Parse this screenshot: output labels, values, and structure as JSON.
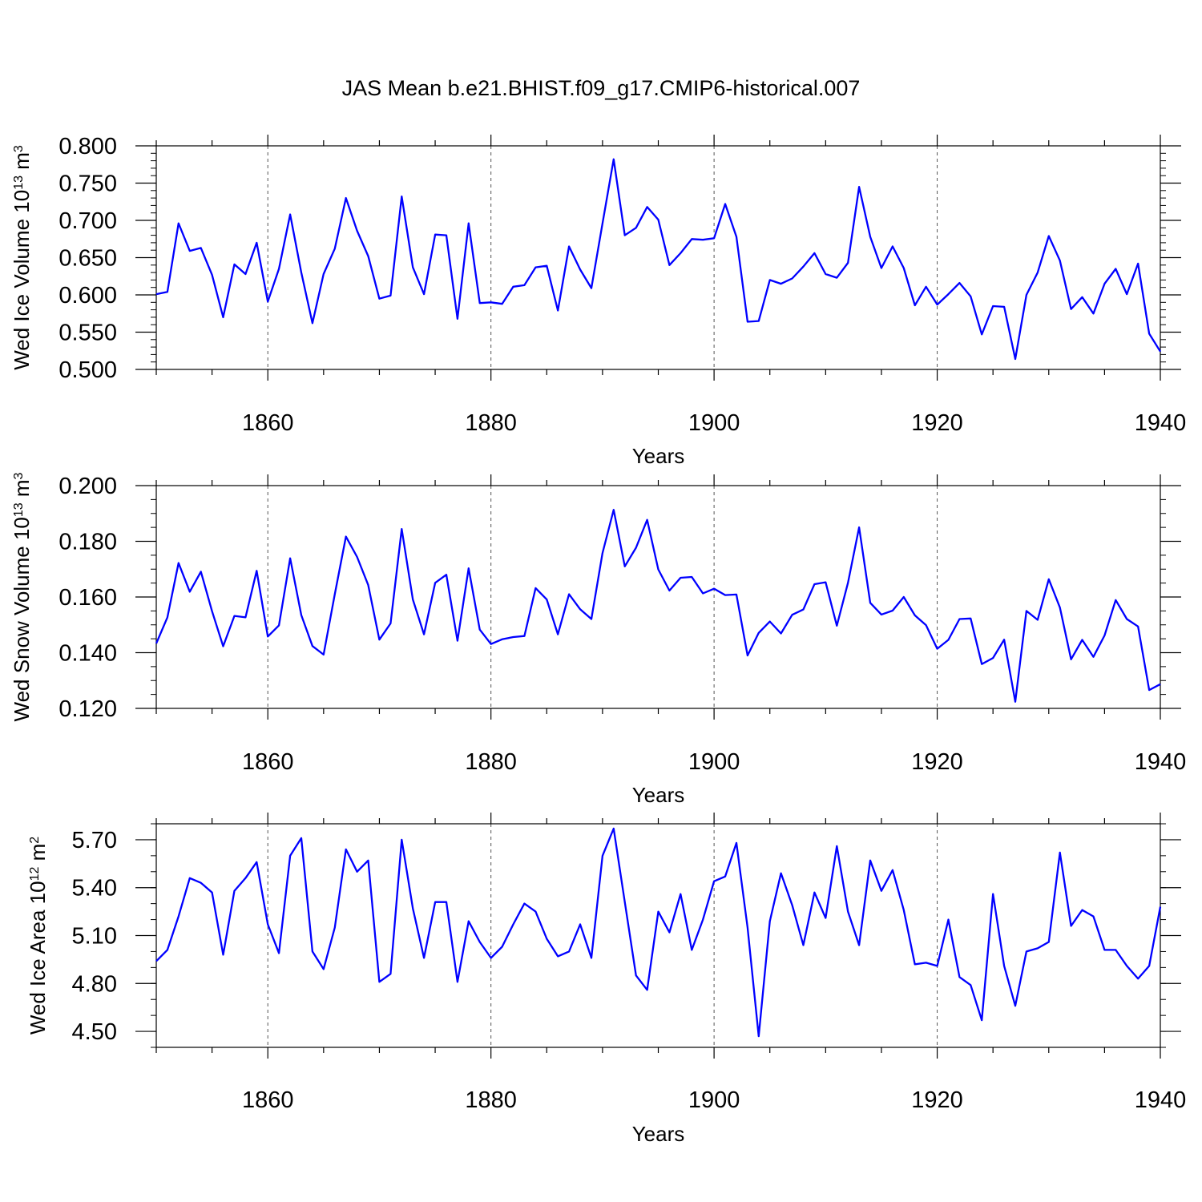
{
  "title": "JAS Mean b.e21.BHIST.f09_g17.CMIP6-historical.007",
  "colors": {
    "line": "#0000ff",
    "axis": "#000000",
    "grid": "#555555"
  },
  "chart_data": [
    {
      "type": "line",
      "ylabel_main": "Wed Ice Volume 10",
      "ylabel_exp": "13",
      "ylabel_unit": " m",
      "ylabel_unit_exp": "3",
      "xlabel": "Years",
      "xlim": [
        1850,
        1940
      ],
      "ylim": [
        0.5,
        0.8
      ],
      "yticks": [
        0.5,
        0.55,
        0.6,
        0.65,
        0.7,
        0.75,
        0.8
      ],
      "ytick_labels": [
        "0.500",
        "0.550",
        "0.600",
        "0.650",
        "0.700",
        "0.750",
        "0.800"
      ],
      "xticks": [
        1860,
        1880,
        1900,
        1920,
        1940
      ],
      "xtick_labels": [
        "1860",
        "1880",
        "1900",
        "1920",
        "1940"
      ],
      "grid_x": [
        1860,
        1880,
        1900,
        1920
      ],
      "x": [
        1850,
        1851,
        1852,
        1853,
        1854,
        1855,
        1856,
        1857,
        1858,
        1859,
        1860,
        1861,
        1862,
        1863,
        1864,
        1865,
        1866,
        1867,
        1868,
        1869,
        1870,
        1871,
        1872,
        1873,
        1874,
        1875,
        1876,
        1877,
        1878,
        1879,
        1880,
        1881,
        1882,
        1883,
        1884,
        1885,
        1886,
        1887,
        1888,
        1889,
        1890,
        1891,
        1892,
        1893,
        1894,
        1895,
        1896,
        1897,
        1898,
        1899,
        1900,
        1901,
        1902,
        1903,
        1904,
        1905,
        1906,
        1907,
        1908,
        1909,
        1910,
        1911,
        1912,
        1913,
        1914,
        1915,
        1916,
        1917,
        1918,
        1919,
        1920,
        1921,
        1922,
        1923,
        1924,
        1925,
        1926,
        1927,
        1928,
        1929,
        1930,
        1931,
        1932,
        1933,
        1934,
        1935,
        1936,
        1937,
        1938,
        1939,
        1940
      ],
      "values": [
        0.601,
        0.604,
        0.696,
        0.659,
        0.663,
        0.627,
        0.57,
        0.641,
        0.628,
        0.67,
        0.591,
        0.635,
        0.708,
        0.63,
        0.562,
        0.628,
        0.662,
        0.73,
        0.686,
        0.652,
        0.595,
        0.599,
        0.732,
        0.637,
        0.601,
        0.681,
        0.68,
        0.568,
        0.696,
        0.589,
        0.59,
        0.588,
        0.611,
        0.613,
        0.637,
        0.639,
        0.579,
        0.665,
        0.634,
        0.609,
        0.696,
        0.782,
        0.68,
        0.69,
        0.718,
        0.701,
        0.64,
        0.656,
        0.675,
        0.674,
        0.676,
        0.722,
        0.678,
        0.564,
        0.565,
        0.62,
        0.615,
        0.622,
        0.638,
        0.656,
        0.628,
        0.623,
        0.643,
        0.745,
        0.678,
        0.636,
        0.665,
        0.636,
        0.586,
        0.611,
        0.587,
        0.601,
        0.616,
        0.598,
        0.547,
        0.585,
        0.584,
        0.514,
        0.6,
        0.63,
        0.679,
        0.646,
        0.581,
        0.597,
        0.575,
        0.615,
        0.635,
        0.601,
        0.642,
        0.548,
        0.524
      ]
    },
    {
      "type": "line",
      "ylabel_main": "Wed Snow Volume 10",
      "ylabel_exp": "13",
      "ylabel_unit": " m",
      "ylabel_unit_exp": "3",
      "xlabel": "Years",
      "xlim": [
        1850,
        1940
      ],
      "ylim": [
        0.12,
        0.2
      ],
      "yticks": [
        0.12,
        0.14,
        0.16,
        0.18,
        0.2
      ],
      "ytick_labels": [
        "0.120",
        "0.140",
        "0.160",
        "0.180",
        "0.200"
      ],
      "xticks": [
        1860,
        1880,
        1900,
        1920,
        1940
      ],
      "xtick_labels": [
        "1860",
        "1880",
        "1900",
        "1920",
        "1940"
      ],
      "grid_x": [
        1860,
        1880,
        1900,
        1920
      ],
      "x": [
        1850,
        1851,
        1852,
        1853,
        1854,
        1855,
        1856,
        1857,
        1858,
        1859,
        1860,
        1861,
        1862,
        1863,
        1864,
        1865,
        1866,
        1867,
        1868,
        1869,
        1870,
        1871,
        1872,
        1873,
        1874,
        1875,
        1876,
        1877,
        1878,
        1879,
        1880,
        1881,
        1882,
        1883,
        1884,
        1885,
        1886,
        1887,
        1888,
        1889,
        1890,
        1891,
        1892,
        1893,
        1894,
        1895,
        1896,
        1897,
        1898,
        1899,
        1900,
        1901,
        1902,
        1903,
        1904,
        1905,
        1906,
        1907,
        1908,
        1909,
        1910,
        1911,
        1912,
        1913,
        1914,
        1915,
        1916,
        1917,
        1918,
        1919,
        1920,
        1921,
        1922,
        1923,
        1924,
        1925,
        1926,
        1927,
        1928,
        1929,
        1930,
        1931,
        1932,
        1933,
        1934,
        1935,
        1936,
        1937,
        1938,
        1939,
        1940
      ],
      "values": [
        0.1433,
        0.1527,
        0.1722,
        0.1619,
        0.1691,
        0.1549,
        0.1423,
        0.1532,
        0.1527,
        0.1694,
        0.1458,
        0.1498,
        0.1739,
        0.1535,
        0.1424,
        0.1393,
        0.161,
        0.1817,
        0.1744,
        0.1643,
        0.1447,
        0.1505,
        0.1844,
        0.1591,
        0.1466,
        0.1651,
        0.168,
        0.1443,
        0.1703,
        0.1483,
        0.1431,
        0.1448,
        0.1456,
        0.146,
        0.1632,
        0.1591,
        0.1466,
        0.161,
        0.1556,
        0.1521,
        0.1758,
        0.1913,
        0.171,
        0.1777,
        0.1877,
        0.1699,
        0.1623,
        0.1669,
        0.1672,
        0.1613,
        0.163,
        0.1607,
        0.1609,
        0.139,
        0.1471,
        0.1512,
        0.1469,
        0.1536,
        0.1555,
        0.1646,
        0.1653,
        0.1497,
        0.1651,
        0.185,
        0.1579,
        0.1537,
        0.1551,
        0.16,
        0.1534,
        0.1499,
        0.1414,
        0.1446,
        0.1521,
        0.1523,
        0.1359,
        0.1381,
        0.1447,
        0.1224,
        0.155,
        0.1518,
        0.1664,
        0.1562,
        0.1376,
        0.1446,
        0.1385,
        0.1462,
        0.1589,
        0.1521,
        0.1494,
        0.1266,
        0.1287
      ]
    },
    {
      "type": "line",
      "ylabel_main": "Wed Ice Area 10",
      "ylabel_exp": "12",
      "ylabel_unit": " m",
      "ylabel_unit_exp": "2",
      "xlabel": "Years",
      "xlim": [
        1850,
        1940
      ],
      "ylim": [
        4.4,
        5.8
      ],
      "yticks": [
        4.5,
        4.8,
        5.1,
        5.4,
        5.7
      ],
      "ytick_labels": [
        "4.50",
        "4.80",
        "5.10",
        "5.40",
        "5.70"
      ],
      "xticks": [
        1860,
        1880,
        1900,
        1920,
        1940
      ],
      "xtick_labels": [
        "1860",
        "1880",
        "1900",
        "1920",
        "1940"
      ],
      "grid_x": [
        1860,
        1880,
        1900,
        1920
      ],
      "x": [
        1850,
        1851,
        1852,
        1853,
        1854,
        1855,
        1856,
        1857,
        1858,
        1859,
        1860,
        1861,
        1862,
        1863,
        1864,
        1865,
        1866,
        1867,
        1868,
        1869,
        1870,
        1871,
        1872,
        1873,
        1874,
        1875,
        1876,
        1877,
        1878,
        1879,
        1880,
        1881,
        1882,
        1883,
        1884,
        1885,
        1886,
        1887,
        1888,
        1889,
        1890,
        1891,
        1892,
        1893,
        1894,
        1895,
        1896,
        1897,
        1898,
        1899,
        1900,
        1901,
        1902,
        1903,
        1904,
        1905,
        1906,
        1907,
        1908,
        1909,
        1910,
        1911,
        1912,
        1913,
        1914,
        1915,
        1916,
        1917,
        1918,
        1919,
        1920,
        1921,
        1922,
        1923,
        1924,
        1925,
        1926,
        1927,
        1928,
        1929,
        1930,
        1931,
        1932,
        1933,
        1934,
        1935,
        1936,
        1937,
        1938,
        1939,
        1940
      ],
      "values": [
        4.94,
        5.01,
        5.22,
        5.46,
        5.43,
        5.37,
        4.98,
        5.38,
        5.46,
        5.56,
        5.17,
        4.99,
        5.6,
        5.71,
        5.0,
        4.89,
        5.15,
        5.64,
        5.5,
        5.57,
        4.81,
        4.86,
        5.7,
        5.27,
        4.96,
        5.31,
        5.31,
        4.81,
        5.19,
        5.06,
        4.96,
        5.03,
        5.17,
        5.3,
        5.25,
        5.08,
        4.97,
        5.0,
        5.17,
        4.96,
        5.6,
        5.77,
        5.31,
        4.85,
        4.76,
        5.25,
        5.12,
        5.36,
        5.01,
        5.2,
        5.44,
        5.47,
        5.68,
        5.15,
        4.47,
        5.19,
        5.49,
        5.29,
        5.04,
        5.37,
        5.21,
        5.66,
        5.25,
        5.04,
        5.57,
        5.38,
        5.51,
        5.26,
        4.92,
        4.93,
        4.91,
        5.2,
        4.84,
        4.79,
        4.57,
        5.36,
        4.91,
        4.66,
        5.0,
        5.02,
        5.06,
        5.62,
        5.16,
        5.26,
        5.22,
        5.01,
        5.01,
        4.91,
        4.83,
        4.91,
        5.28
      ]
    }
  ]
}
